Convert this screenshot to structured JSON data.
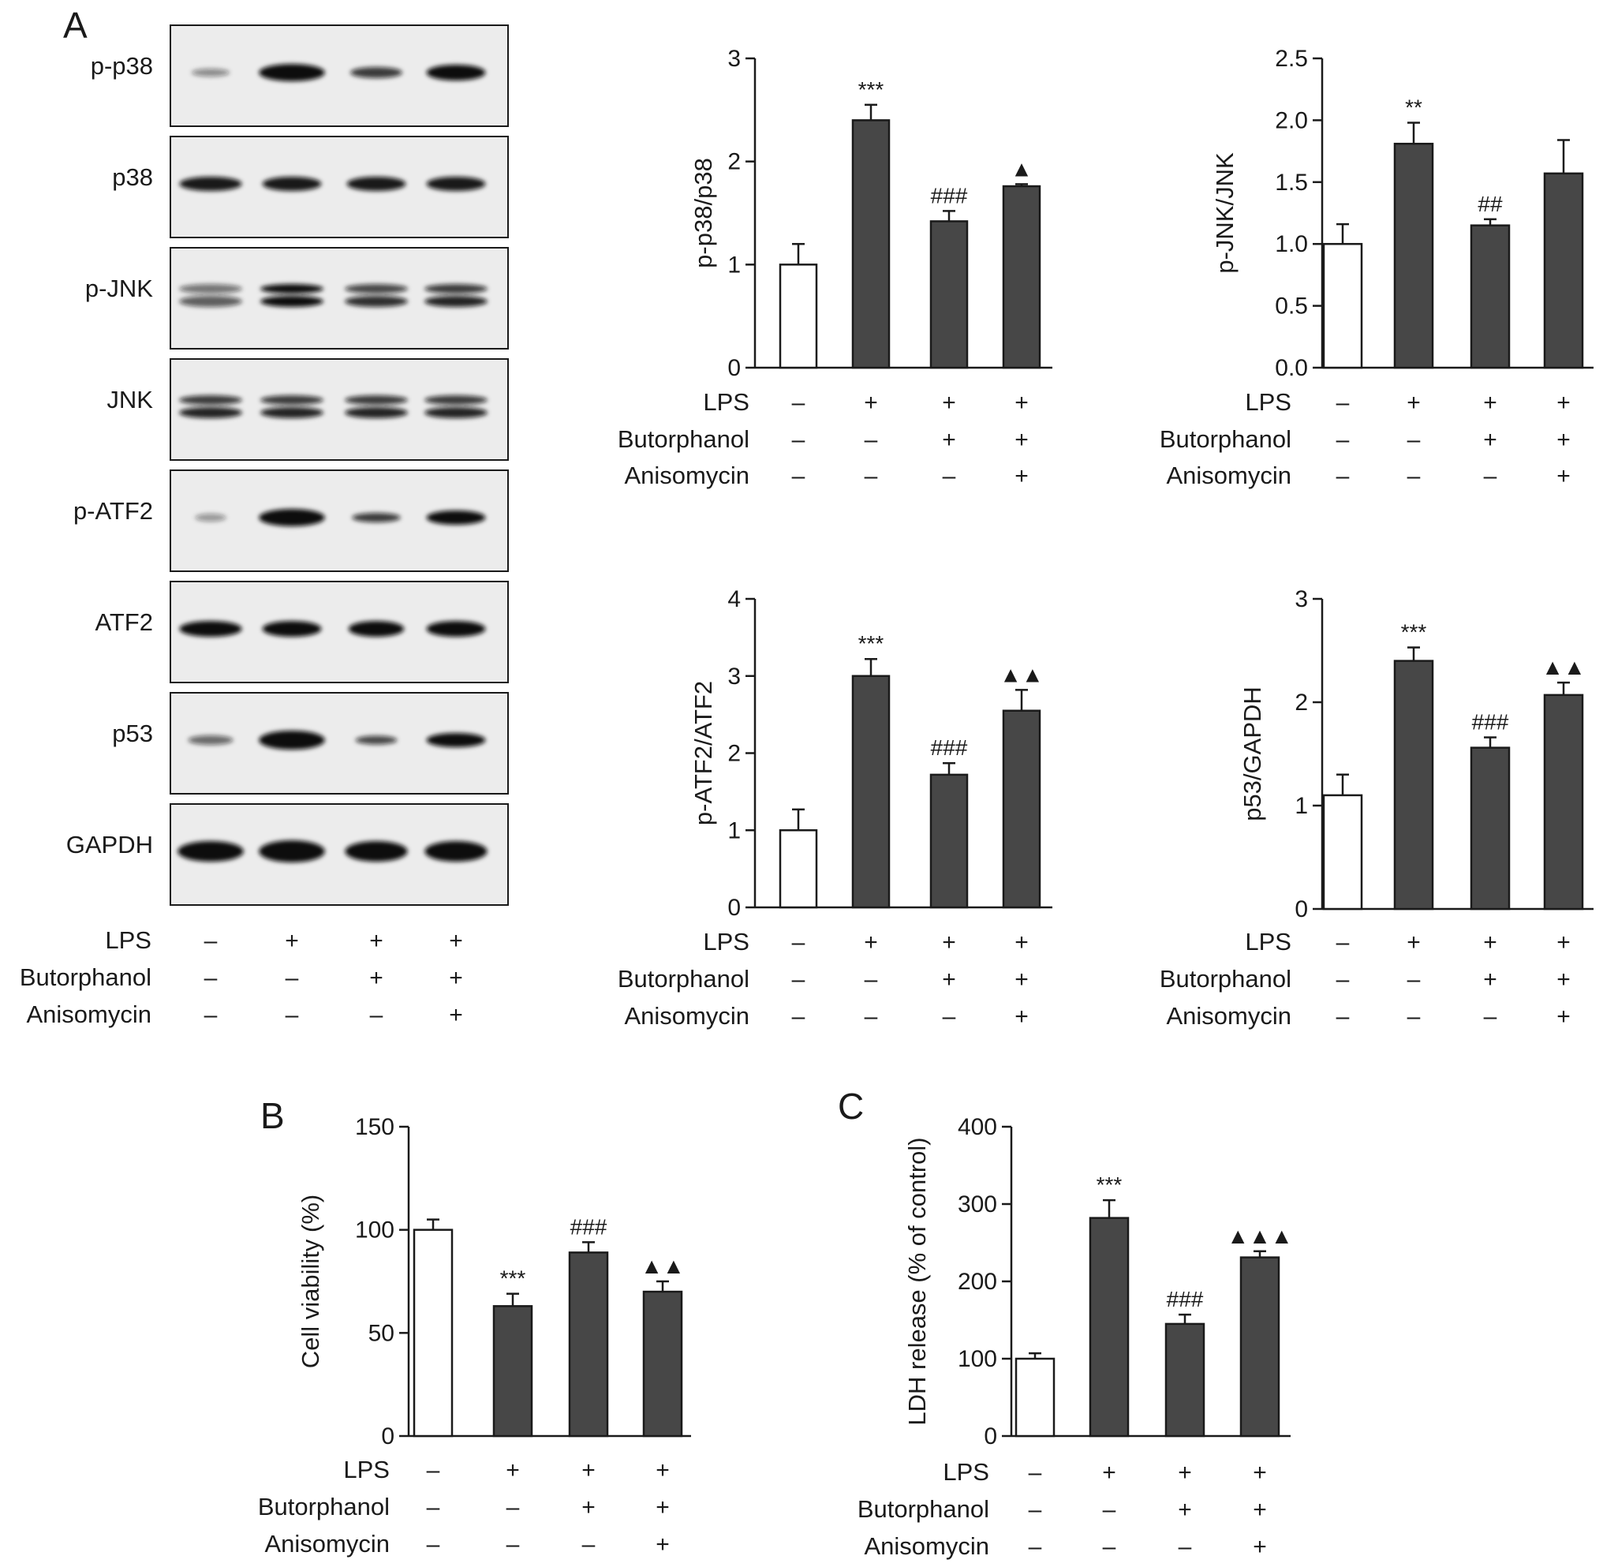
{
  "panel_letters": [
    "A",
    "B",
    "C"
  ],
  "blot": {
    "proteins": [
      "p-p38",
      "p38",
      "p-JNK",
      "JNK",
      "p-ATF2",
      "ATF2",
      "p53",
      "GAPDH"
    ],
    "conditions": [
      {
        "name": "LPS",
        "signs": [
          "–",
          "+",
          "+",
          "+"
        ]
      },
      {
        "name": "Butorphanol",
        "signs": [
          "–",
          "–",
          "+",
          "+"
        ]
      },
      {
        "name": "Anisomycin",
        "signs": [
          "–",
          "–",
          "–",
          "+"
        ]
      }
    ]
  },
  "colors": {
    "bar_control": "#ffffff",
    "bar_treated": "#474747",
    "axis": "#1a1a1a",
    "blot_band": "#111111"
  },
  "chart_data": [
    {
      "id": "p38",
      "type": "bar",
      "ylabel": "p-p38/p38",
      "ylim": [
        0,
        3
      ],
      "yticks": [
        "0",
        "1",
        "2",
        "3"
      ],
      "values": [
        1.0,
        2.4,
        1.42,
        1.76
      ],
      "errors": [
        0.2,
        0.15,
        0.1,
        0.02
      ],
      "markers": [
        "",
        "***",
        "###",
        "▲"
      ],
      "conditions": [
        {
          "name": "LPS",
          "signs": [
            "–",
            "+",
            "+",
            "+"
          ]
        },
        {
          "name": "Butorphanol",
          "signs": [
            "–",
            "–",
            "+",
            "+"
          ]
        },
        {
          "name": "Anisomycin",
          "signs": [
            "–",
            "–",
            "–",
            "+"
          ]
        }
      ]
    },
    {
      "id": "jnk",
      "type": "bar",
      "ylabel": "p-JNK/JNK",
      "ylim": [
        0,
        2.5
      ],
      "yticks": [
        "0.0",
        "0.5",
        "1.0",
        "1.5",
        "2.0",
        "2.5"
      ],
      "values": [
        1.0,
        1.81,
        1.15,
        1.57
      ],
      "errors": [
        0.16,
        0.17,
        0.05,
        0.27
      ],
      "markers": [
        "",
        "**",
        "##",
        ""
      ],
      "conditions": [
        {
          "name": "LPS",
          "signs": [
            "–",
            "+",
            "+",
            "+"
          ]
        },
        {
          "name": "Butorphanol",
          "signs": [
            "–",
            "–",
            "+",
            "+"
          ]
        },
        {
          "name": "Anisomycin",
          "signs": [
            "–",
            "–",
            "–",
            "+"
          ]
        }
      ]
    },
    {
      "id": "atf2",
      "type": "bar",
      "ylabel": "p-ATF2/ATF2",
      "ylim": [
        0,
        4
      ],
      "yticks": [
        "0",
        "1",
        "2",
        "3",
        "4"
      ],
      "values": [
        1.0,
        3.0,
        1.72,
        2.55
      ],
      "errors": [
        0.27,
        0.22,
        0.15,
        0.27
      ],
      "markers": [
        "",
        "***",
        "###",
        "▲▲"
      ],
      "conditions": [
        {
          "name": "LPS",
          "signs": [
            "–",
            "+",
            "+",
            "+"
          ]
        },
        {
          "name": "Butorphanol",
          "signs": [
            "–",
            "–",
            "+",
            "+"
          ]
        },
        {
          "name": "Anisomycin",
          "signs": [
            "–",
            "–",
            "–",
            "+"
          ]
        }
      ]
    },
    {
      "id": "p53",
      "type": "bar",
      "ylabel": "p53/GAPDH",
      "ylim": [
        0,
        3
      ],
      "yticks": [
        "0",
        "1",
        "2",
        "3"
      ],
      "values": [
        1.1,
        2.4,
        1.56,
        2.07
      ],
      "errors": [
        0.2,
        0.13,
        0.1,
        0.12
      ],
      "markers": [
        "",
        "***",
        "###",
        "▲▲"
      ],
      "conditions": [
        {
          "name": "LPS",
          "signs": [
            "–",
            "+",
            "+",
            "+"
          ]
        },
        {
          "name": "Butorphanol",
          "signs": [
            "–",
            "–",
            "+",
            "+"
          ]
        },
        {
          "name": "Anisomycin",
          "signs": [
            "–",
            "–",
            "–",
            "+"
          ]
        }
      ]
    },
    {
      "id": "viability",
      "type": "bar",
      "ylabel": "Cell viability (%)",
      "ylim": [
        0,
        150
      ],
      "yticks": [
        "0",
        "50",
        "100",
        "150"
      ],
      "values": [
        100,
        63,
        89,
        70
      ],
      "errors": [
        5,
        6,
        5,
        5
      ],
      "markers": [
        "",
        "***",
        "###",
        "▲▲"
      ],
      "conditions": [
        {
          "name": "LPS",
          "signs": [
            "–",
            "+",
            "+",
            "+"
          ]
        },
        {
          "name": "Butorphanol",
          "signs": [
            "–",
            "–",
            "+",
            "+"
          ]
        },
        {
          "name": "Anisomycin",
          "signs": [
            "–",
            "–",
            "–",
            "+"
          ]
        }
      ]
    },
    {
      "id": "ldh",
      "type": "bar",
      "ylabel": "LDH release (% of control)",
      "ylim": [
        0,
        400
      ],
      "yticks": [
        "0",
        "100",
        "200",
        "300",
        "400"
      ],
      "values": [
        100,
        282,
        145,
        231
      ],
      "errors": [
        7,
        23,
        12,
        8
      ],
      "markers": [
        "",
        "***",
        "###",
        "▲▲▲"
      ],
      "conditions": [
        {
          "name": "LPS",
          "signs": [
            "–",
            "+",
            "+",
            "+"
          ]
        },
        {
          "name": "Butorphanol",
          "signs": [
            "–",
            "–",
            "+",
            "+"
          ]
        },
        {
          "name": "Anisomycin",
          "signs": [
            "–",
            "–",
            "–",
            "+"
          ]
        }
      ]
    }
  ]
}
